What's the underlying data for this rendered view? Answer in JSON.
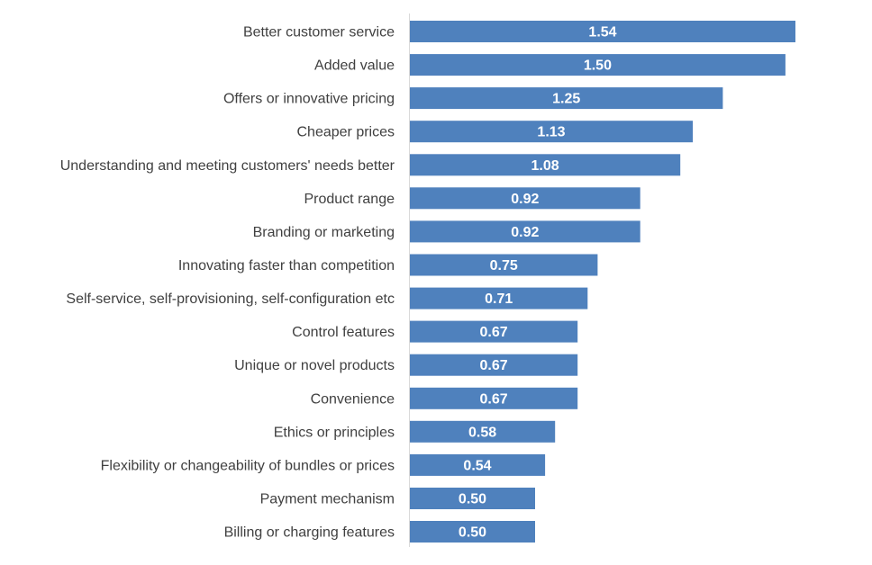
{
  "chart_data": {
    "type": "bar",
    "orientation": "horizontal",
    "categories": [
      "Better customer service",
      "Added value",
      "Offers or innovative pricing",
      "Cheaper prices",
      "Understanding and meeting customers' needs better",
      "Product range",
      "Branding or marketing",
      "Innovating faster than competition",
      "Self-service, self-provisioning, self-configuration etc",
      "Control features",
      "Unique or novel products",
      "Convenience",
      "Ethics or principles",
      "Flexibility or changeability of bundles or prices",
      "Payment mechanism",
      "Billing or charging features"
    ],
    "values": [
      1.54,
      1.5,
      1.25,
      1.13,
      1.08,
      0.92,
      0.92,
      0.75,
      0.71,
      0.67,
      0.67,
      0.67,
      0.58,
      0.54,
      0.5,
      0.5
    ],
    "value_labels": [
      "1.54",
      "1.50",
      "1.25",
      "1.13",
      "1.08",
      "0.92",
      "0.92",
      "0.75",
      "0.71",
      "0.67",
      "0.67",
      "0.67",
      "0.58",
      "0.54",
      "0.50",
      "0.50"
    ],
    "xlim": [
      0,
      1.54
    ],
    "grid": false,
    "legend": "none",
    "bar_color": "#4f81bd",
    "label_color": "#404040",
    "value_label_color": "#ffffff",
    "axis_color": "#d9d9d9"
  }
}
